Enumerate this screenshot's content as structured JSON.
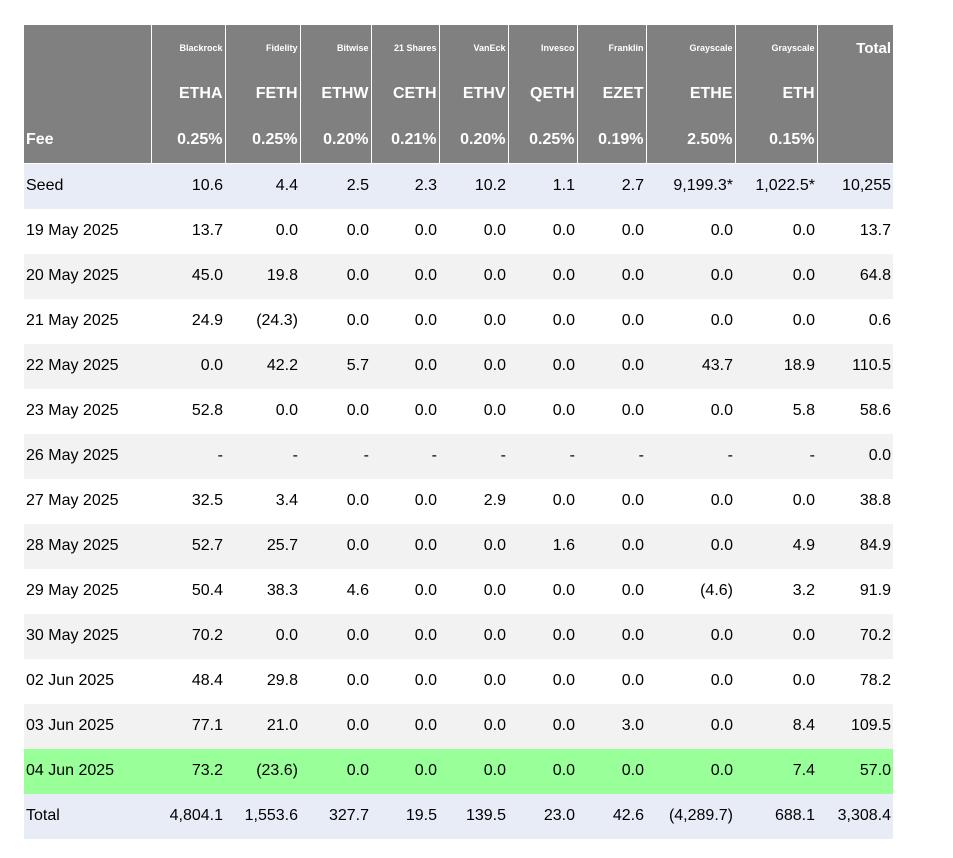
{
  "header": {
    "issuers": [
      "",
      "Blackrock",
      "Fidelity",
      "Bitwise",
      "21 Shares",
      "VanEck",
      "Invesco",
      "Franklin",
      "Grayscale",
      "Grayscale",
      "Total"
    ],
    "tickers": [
      "",
      "ETHA",
      "FETH",
      "ETHW",
      "CETH",
      "ETHV",
      "QETH",
      "EZET",
      "ETHE",
      "ETH",
      ""
    ],
    "fees": [
      "Fee",
      "0.25%",
      "0.25%",
      "0.20%",
      "0.21%",
      "0.20%",
      "0.25%",
      "0.19%",
      "2.50%",
      "0.15%",
      ""
    ]
  },
  "rows": [
    [
      "Seed",
      "10.6",
      "4.4",
      "2.5",
      "2.3",
      "10.2",
      "1.1",
      "2.7",
      "9,199.3*",
      "1,022.5*",
      "10,255"
    ],
    [
      "19 May 2025",
      "13.7",
      "0.0",
      "0.0",
      "0.0",
      "0.0",
      "0.0",
      "0.0",
      "0.0",
      "0.0",
      "13.7"
    ],
    [
      "20 May 2025",
      "45.0",
      "19.8",
      "0.0",
      "0.0",
      "0.0",
      "0.0",
      "0.0",
      "0.0",
      "0.0",
      "64.8"
    ],
    [
      "21 May 2025",
      "24.9",
      "(24.3)",
      "0.0",
      "0.0",
      "0.0",
      "0.0",
      "0.0",
      "0.0",
      "0.0",
      "0.6"
    ],
    [
      "22 May 2025",
      "0.0",
      "42.2",
      "5.7",
      "0.0",
      "0.0",
      "0.0",
      "0.0",
      "43.7",
      "18.9",
      "110.5"
    ],
    [
      "23 May 2025",
      "52.8",
      "0.0",
      "0.0",
      "0.0",
      "0.0",
      "0.0",
      "0.0",
      "0.0",
      "5.8",
      "58.6"
    ],
    [
      "26 May 2025",
      "-",
      "-",
      "-",
      "-",
      "-",
      "-",
      "-",
      "-",
      "-",
      "0.0"
    ],
    [
      "27 May 2025",
      "32.5",
      "3.4",
      "0.0",
      "0.0",
      "2.9",
      "0.0",
      "0.0",
      "0.0",
      "0.0",
      "38.8"
    ],
    [
      "28 May 2025",
      "52.7",
      "25.7",
      "0.0",
      "0.0",
      "0.0",
      "1.6",
      "0.0",
      "0.0",
      "4.9",
      "84.9"
    ],
    [
      "29 May 2025",
      "50.4",
      "38.3",
      "4.6",
      "0.0",
      "0.0",
      "0.0",
      "0.0",
      "(4.6)",
      "3.2",
      "91.9"
    ],
    [
      "30 May 2025",
      "70.2",
      "0.0",
      "0.0",
      "0.0",
      "0.0",
      "0.0",
      "0.0",
      "0.0",
      "0.0",
      "70.2"
    ],
    [
      "02 Jun 2025",
      "48.4",
      "29.8",
      "0.0",
      "0.0",
      "0.0",
      "0.0",
      "0.0",
      "0.0",
      "0.0",
      "78.2"
    ],
    [
      "03 Jun 2025",
      "77.1",
      "21.0",
      "0.0",
      "0.0",
      "0.0",
      "0.0",
      "3.0",
      "0.0",
      "8.4",
      "109.5"
    ],
    [
      "04 Jun 2025",
      "73.2",
      "(23.6)",
      "0.0",
      "0.0",
      "0.0",
      "0.0",
      "0.0",
      "0.0",
      "7.4",
      "57.0"
    ],
    [
      "Total",
      "4,804.1",
      "1,553.6",
      "327.7",
      "19.5",
      "139.5",
      "23.0",
      "42.6",
      "(4,289.7)",
      "688.1",
      "3,308.4"
    ]
  ],
  "colors": {
    "header_bg": "#808080",
    "header_text": "#ffffff",
    "seed_bg": "#e8ecf7",
    "alt_row_bg": "#f2f2f2",
    "highlight_bg": "#99ff99",
    "negative_text": "#e00000"
  }
}
